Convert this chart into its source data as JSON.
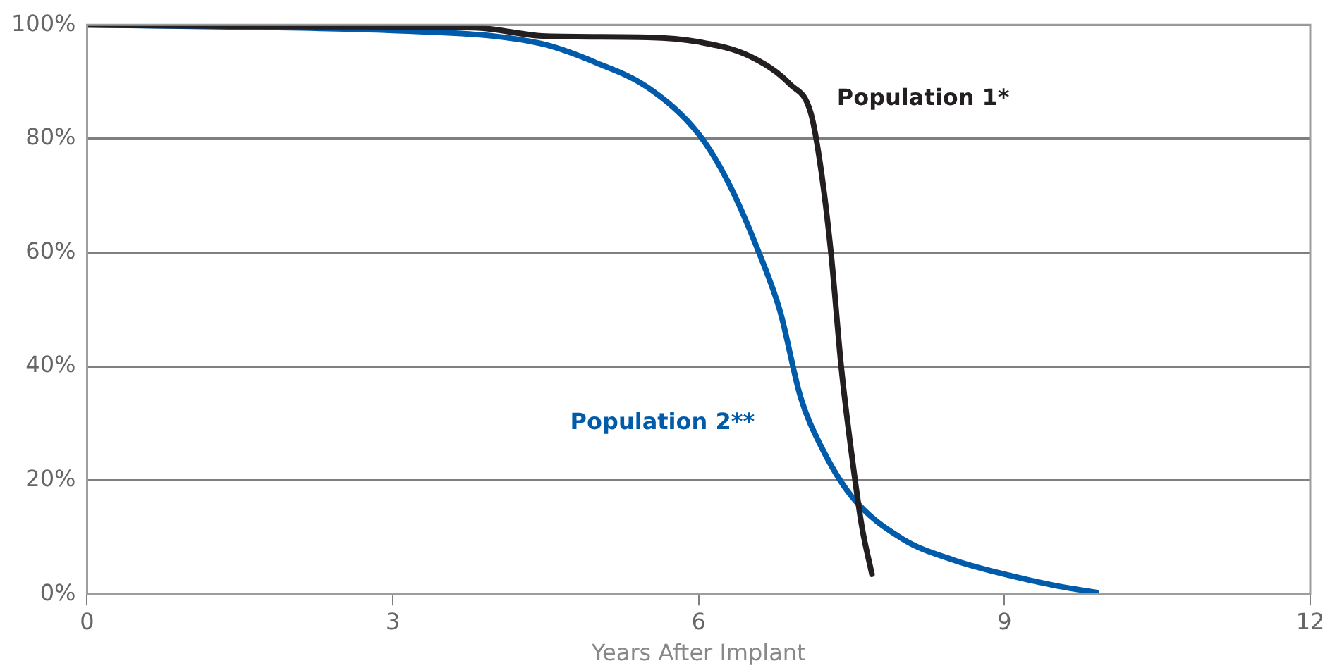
{
  "chart_data": {
    "type": "line",
    "xlabel": "Years After Implant",
    "xlim": [
      0,
      12
    ],
    "xticks": [
      0,
      3,
      6,
      9,
      12
    ],
    "ylim": [
      0,
      100
    ],
    "yticks": [
      {
        "value": 0,
        "label": "0%"
      },
      {
        "value": 20,
        "label": "20%"
      },
      {
        "value": 40,
        "label": "40%"
      },
      {
        "value": 60,
        "label": "60%"
      },
      {
        "value": 80,
        "label": "80%"
      },
      {
        "value": 100,
        "label": "100%"
      }
    ],
    "grid": "y",
    "legend": false,
    "marker": "none",
    "line_style": "solid",
    "series": [
      {
        "name": "Population 1*",
        "color": "#231f20",
        "x": [
          0,
          2,
          3.8,
          4.5,
          5.5,
          6,
          6.5,
          6.9,
          7.1,
          7.2,
          7.3,
          7.4,
          7.5,
          7.6,
          7.7
        ],
        "values": [
          100,
          99.7,
          99.5,
          98,
          97.8,
          97,
          94.5,
          89.5,
          84.5,
          74.6,
          59.6,
          39.7,
          24.7,
          12,
          3.5
        ]
      },
      {
        "name": "Population 2**",
        "color": "#005bab",
        "x": [
          0,
          2,
          3,
          4,
          4.5,
          5,
          5.5,
          6,
          6.3,
          6.6,
          6.8,
          7,
          7.2,
          7.5,
          8,
          8.5,
          9,
          9.5,
          9.9
        ],
        "values": [
          100,
          99.5,
          99,
          98,
          96.5,
          93.3,
          89,
          80.8,
          72,
          59.6,
          49.6,
          34.6,
          26,
          17.2,
          9.7,
          6,
          3.5,
          1.5,
          0.3
        ]
      }
    ]
  }
}
